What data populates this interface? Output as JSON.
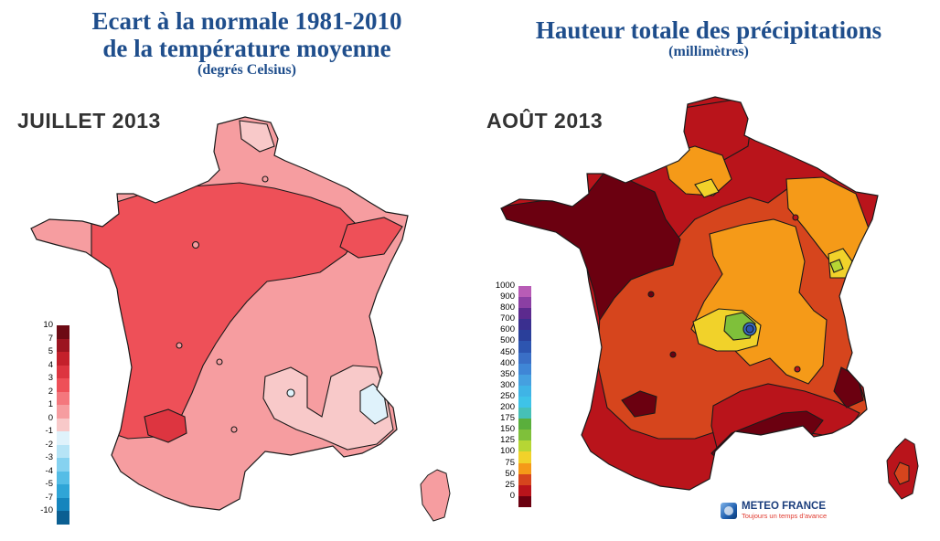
{
  "left_panel": {
    "title_line1": "Ecart à la normale 1981-2010",
    "title_line2": "de la température moyenne",
    "subtitle": "(degrés Celsius)",
    "month": "JUILLET 2013",
    "legend": {
      "labels": [
        "10",
        "7",
        "5",
        "4",
        "3",
        "2",
        "1",
        "0",
        "-1",
        "-2",
        "-3",
        "-4",
        "-5",
        "-7",
        "-10"
      ],
      "colors": [
        "#6d0a14",
        "#9c1420",
        "#c4202b",
        "#dd3540",
        "#ee5058",
        "#f4777d",
        "#f69da0",
        "#f8c9c9",
        "#dff2fb",
        "#b6e4f6",
        "#86d2f0",
        "#55bde6",
        "#2fa5d7",
        "#1585bd",
        "#0b5f92"
      ]
    },
    "region_colors": {
      "base": "#f69da0",
      "warm": "#ee5058",
      "hot": "#dd3540",
      "mild": "#f8c9c9",
      "cool": "#dff2fb"
    }
  },
  "right_panel": {
    "title": "Hauteur totale des précipitations",
    "subtitle": "(millimètres)",
    "month": "AOÛT 2013",
    "legend": {
      "labels": [
        "1000",
        "900",
        "800",
        "700",
        "600",
        "500",
        "450",
        "400",
        "350",
        "300",
        "250",
        "200",
        "175",
        "150",
        "125",
        "100",
        "75",
        "50",
        "25",
        "0"
      ],
      "colors": [
        "#b85cb6",
        "#8b3fa3",
        "#5c2a8e",
        "#3a2f8f",
        "#2a3f9a",
        "#2d55b0",
        "#3a6fc6",
        "#3f86d6",
        "#45a0e0",
        "#3fb4e6",
        "#3ec3e8",
        "#46c0b7",
        "#5aaf3c",
        "#7fc03a",
        "#b6d634",
        "#f1d22a",
        "#f59a18",
        "#d6451d",
        "#b9141b",
        "#6b0010"
      ]
    },
    "region_colors": {
      "driest": "#6b0010",
      "dry": "#b9141b",
      "mid": "#d6451d",
      "orange": "#f59a18",
      "yellow": "#f1d22a",
      "lime": "#b6d634",
      "green": "#7fc03a"
    },
    "logo": {
      "name": "METEO FRANCE",
      "tagline": "Toujours un temps d'avance"
    }
  }
}
